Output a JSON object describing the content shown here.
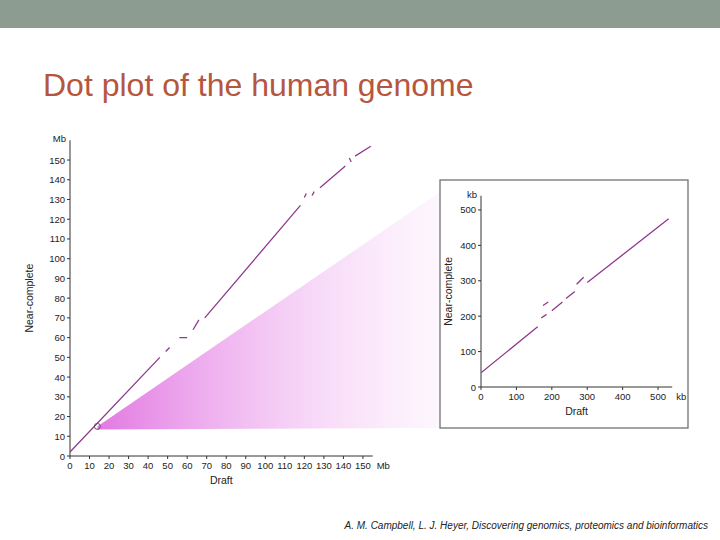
{
  "title": "Dot plot of the human genome",
  "citation": "A. M. Campbell, L. J. Heyer, Discovering genomics, proteomics and bioinformatics",
  "chart_data": [
    {
      "type": "line",
      "x_label": "Draft",
      "y_label": "Near-complete",
      "x_unit": "Mb",
      "y_unit": "Mb",
      "xlim": [
        0,
        155
      ],
      "ylim": [
        0,
        160
      ],
      "xticks": [
        0,
        10,
        20,
        30,
        40,
        50,
        60,
        70,
        80,
        90,
        100,
        110,
        120,
        130,
        140,
        150
      ],
      "yticks": [
        0,
        10,
        20,
        30,
        40,
        50,
        60,
        70,
        80,
        90,
        100,
        110,
        120,
        130,
        140,
        150
      ],
      "zoom_point": {
        "x": 14,
        "y": 15
      },
      "series": [
        {
          "color": "#8e3a8e",
          "x": [
            0,
            46,
            47,
            49,
            51,
            52,
            56,
            60,
            62,
            63,
            66,
            67,
            69,
            118,
            119,
            120,
            121,
            122,
            124,
            125,
            126,
            128,
            141,
            142,
            143,
            144,
            145,
            146,
            154
          ],
          "values": [
            2,
            50,
            null,
            53,
            55,
            null,
            60,
            60,
            null,
            64,
            69,
            null,
            70,
            127,
            null,
            131,
            133,
            null,
            132,
            134,
            null,
            136,
            147,
            null,
            151,
            149,
            null,
            152,
            157
          ]
        }
      ]
    },
    {
      "type": "line",
      "x_label": "Draft",
      "y_label": "Near-complete",
      "x_unit": "kb",
      "y_unit": "kb",
      "xlim": [
        0,
        540
      ],
      "ylim": [
        0,
        540
      ],
      "xticks": [
        0,
        100,
        200,
        300,
        400,
        500
      ],
      "yticks": [
        0,
        100,
        200,
        300,
        400,
        500
      ],
      "series": [
        {
          "color": "#8e3a8e",
          "x": [
            0,
            160,
            165,
            170,
            185,
            187,
            175,
            190,
            195,
            200,
            230,
            235,
            240,
            265,
            267,
            270,
            290,
            295,
            300,
            530
          ],
          "values": [
            40,
            170,
            null,
            195,
            205,
            null,
            230,
            240,
            null,
            215,
            240,
            null,
            250,
            270,
            null,
            290,
            310,
            null,
            295,
            475
          ]
        }
      ]
    }
  ]
}
